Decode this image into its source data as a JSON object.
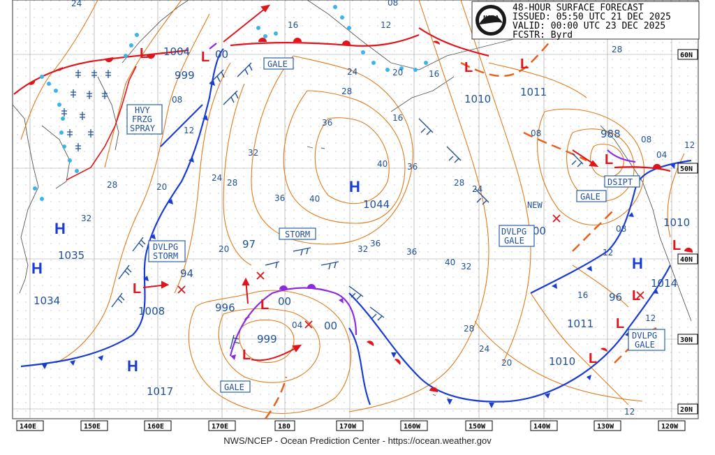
{
  "header": {
    "title": "48-HOUR SURFACE FORECAST",
    "issued": "ISSUED: 05:50 UTC 21 DEC 2025",
    "valid": "VALID:  00:00 UTC 23 DEC 2025",
    "forecaster": "FCSTR:  Byrd",
    "logo_text": "NOAA"
  },
  "footer": "NWS/NCEP - Ocean Prediction Center - https://ocean.weather.gov",
  "longitude_labels": [
    "140E",
    "150E",
    "160E",
    "170E",
    "180",
    "170W",
    "160W",
    "150W",
    "140W",
    "130W",
    "120W"
  ],
  "latitude_labels": [
    "60N",
    "50N",
    "40N",
    "30N",
    "20N"
  ],
  "highs": [
    "H",
    "H",
    "H",
    "H",
    "H"
  ],
  "lows": [
    "L",
    "L",
    "L",
    "L",
    "L",
    "L",
    "L",
    "L",
    "L",
    "L",
    "L",
    "L",
    "L"
  ],
  "pressure_values": [
    "1004",
    "999",
    "1035",
    "1034",
    "1008",
    "1017",
    "996",
    "999",
    "1044",
    "1010",
    "1011",
    "988",
    "1010",
    "1014",
    "1011",
    "1010",
    "97",
    "94",
    "96",
    "00",
    "00",
    "00",
    "00"
  ],
  "isobar_labels": [
    "24",
    "16",
    "12",
    "08",
    "20",
    "16",
    "12",
    "08",
    "24",
    "28",
    "32",
    "36",
    "40",
    "36",
    "28",
    "24",
    "20",
    "28",
    "32",
    "36",
    "40",
    "36",
    "32",
    "28",
    "24",
    "20",
    "16",
    "12",
    "08",
    "04",
    "08",
    "12",
    "28",
    "04",
    "12",
    "16",
    "20",
    "24",
    "28",
    "32",
    "36",
    "40",
    "08",
    "12"
  ],
  "warning_labels": [
    {
      "lines": [
        "GALE"
      ]
    },
    {
      "lines": [
        "HVY",
        "FRZG",
        "SPRAY"
      ]
    },
    {
      "lines": [
        "DVLPG",
        "STORM"
      ]
    },
    {
      "lines": [
        "STORM"
      ]
    },
    {
      "lines": [
        "GALE"
      ]
    },
    {
      "lines": [
        "GALE"
      ]
    },
    {
      "lines": [
        "DSIPT"
      ]
    },
    {
      "lines": [
        "DVLPG",
        "GALE"
      ]
    },
    {
      "lines": [
        "DVLPG",
        "GALE"
      ]
    }
  ],
  "annotations": [
    "NEW"
  ],
  "colors": {
    "isobar": "#e07a1a",
    "front_cold": "#1a3cd6",
    "front_warm": "#e0141a",
    "occluded": "#8a2be2",
    "trough": "#e8601c",
    "text": "#1f4f9a",
    "ice": "#3cb4ea",
    "high": "#1a3cd6",
    "low": "#e0141a",
    "grid": "#9a9a9a"
  }
}
